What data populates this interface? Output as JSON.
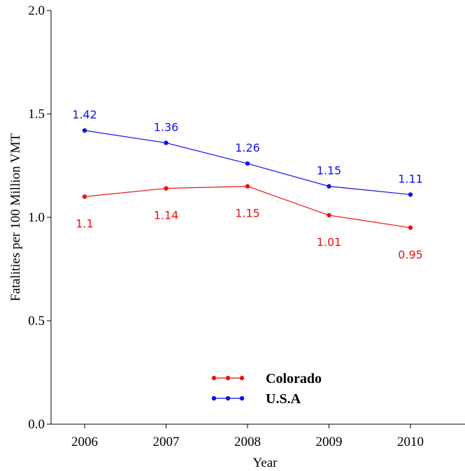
{
  "chart_data": {
    "type": "line",
    "title": "",
    "xlabel": "Year",
    "ylabel": "Fatalities per 100 Million VMT",
    "categories": [
      "2006",
      "2007",
      "2008",
      "2009",
      "2010"
    ],
    "ylim": [
      0.0,
      2.0
    ],
    "yticks": [
      "0.0",
      "0.5",
      "1.0",
      "1.5",
      "2.0"
    ],
    "grid": false,
    "legend_position": "bottom-center",
    "series": [
      {
        "name": "Colorado",
        "color": "#ee1111",
        "values": [
          1.1,
          1.14,
          1.15,
          1.01,
          0.95
        ],
        "labels": [
          "1.1",
          "1.14",
          "1.15",
          "1.01",
          "0.95"
        ],
        "label_position": "below"
      },
      {
        "name": "U.S.A",
        "color": "#1111ee",
        "values": [
          1.42,
          1.36,
          1.26,
          1.15,
          1.11
        ],
        "labels": [
          "1.42",
          "1.36",
          "1.26",
          "1.15",
          "1.11"
        ],
        "label_position": "above"
      }
    ]
  }
}
